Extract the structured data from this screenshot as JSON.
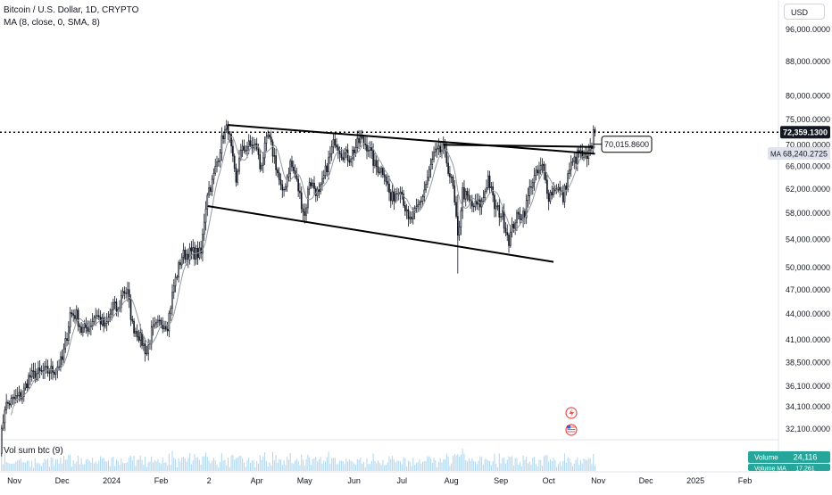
{
  "header": {
    "title": "Bitcoin / U.S. Dollar, 1D, CRYPTO",
    "ma_indicator": "MA (8, close, 0, SMA, 8)",
    "volume_indicator": "Vol sum btc (9)",
    "currency": "USD"
  },
  "price_panel": {
    "last_price_label": "72,359.1300",
    "ma_badge_text": "MA",
    "ma_value_label": "68,240.2725",
    "annotation_label": "70,015.8600",
    "volume_badge_text": "Volume",
    "volume_value_label": "24,116",
    "volume_ma_badge_text": "Volume MA",
    "volume_ma_value_label": "17,261"
  },
  "colors": {
    "up": "#26a69a",
    "down": "#ef5350",
    "candle": "#131722",
    "ma_line": "#9598a1",
    "grid": "#f0f3fa",
    "volume": "#b2d8f0",
    "volume_badge": "#26a69a",
    "icon_red": "#ef5350"
  },
  "icons": [
    "flash-icon",
    "us-flag-icon"
  ],
  "chart_data": {
    "type": "candlestick",
    "y_axis_ticks": [
      {
        "label": "96,000.0000",
        "value": 96000
      },
      {
        "label": "88,000.0000",
        "value": 88000
      },
      {
        "label": "80,000.0000",
        "value": 80000
      },
      {
        "label": "75,000.0000",
        "value": 75000
      },
      {
        "label": "70,000.0000",
        "value": 70000
      },
      {
        "label": "66,000.0000",
        "value": 66000
      },
      {
        "label": "62,000.0000",
        "value": 62000
      },
      {
        "label": "58,000.0000",
        "value": 58000
      },
      {
        "label": "54,000.0000",
        "value": 54000
      },
      {
        "label": "50,000.0000",
        "value": 50000
      },
      {
        "label": "47,000.0000",
        "value": 47000
      },
      {
        "label": "44,000.0000",
        "value": 44000
      },
      {
        "label": "41,000.0000",
        "value": 41000
      },
      {
        "label": "38,500.0000",
        "value": 38500
      },
      {
        "label": "36,100.0000",
        "value": 36100
      },
      {
        "label": "34,100.0000",
        "value": 34100
      },
      {
        "label": "32,100.0000",
        "value": 32100
      }
    ],
    "y_scale": "log",
    "ylim": [
      31200,
      104000
    ],
    "x_axis_ticks": [
      {
        "label": "Nov",
        "date": "2023-11-01"
      },
      {
        "label": "Dec",
        "date": "2023-12-01"
      },
      {
        "label": "2024",
        "date": "2024-01-01"
      },
      {
        "label": "Feb",
        "date": "2024-02-01"
      },
      {
        "label": "2",
        "date": "2024-03-02"
      },
      {
        "label": "Apr",
        "date": "2024-04-01"
      },
      {
        "label": "May",
        "date": "2024-05-01"
      },
      {
        "label": "Jun",
        "date": "2024-06-01"
      },
      {
        "label": "Jul",
        "date": "2024-07-01"
      },
      {
        "label": "Aug",
        "date": "2024-08-01"
      },
      {
        "label": "Sep",
        "date": "2024-09-01"
      },
      {
        "label": "Oct",
        "date": "2024-10-01"
      },
      {
        "label": "Nov",
        "date": "2024-11-01"
      },
      {
        "label": "Dec",
        "date": "2024-12-01"
      },
      {
        "label": "2025",
        "date": "2025-01-01"
      },
      {
        "label": "Feb",
        "date": "2025-02-01"
      }
    ],
    "xlim": [
      "2023-10-23",
      "2025-02-22"
    ],
    "series_anchors": [
      [
        "2023-10-23",
        30500
      ],
      [
        "2023-10-26",
        34100
      ],
      [
        "2023-11-02",
        34900
      ],
      [
        "2023-11-06",
        35200
      ],
      [
        "2023-11-10",
        36900
      ],
      [
        "2023-11-15",
        37300
      ],
      [
        "2023-11-20",
        37500
      ],
      [
        "2023-11-26",
        37700
      ],
      [
        "2023-12-01",
        38700
      ],
      [
        "2023-12-04",
        41500
      ],
      [
        "2023-12-06",
        44000
      ],
      [
        "2023-12-10",
        43800
      ],
      [
        "2023-12-13",
        42000
      ],
      [
        "2023-12-18",
        42500
      ],
      [
        "2023-12-22",
        44000
      ],
      [
        "2023-12-28",
        42300
      ],
      [
        "2024-01-02",
        45000
      ],
      [
        "2024-01-05",
        44200
      ],
      [
        "2024-01-08",
        47000
      ],
      [
        "2024-01-11",
        46500
      ],
      [
        "2024-01-14",
        42600
      ],
      [
        "2024-01-18",
        41500
      ],
      [
        "2024-01-23",
        39500
      ],
      [
        "2024-01-26",
        41800
      ],
      [
        "2024-02-01",
        43000
      ],
      [
        "2024-02-05",
        42700
      ],
      [
        "2024-02-09",
        47500
      ],
      [
        "2024-02-14",
        51600
      ],
      [
        "2024-02-20",
        52000
      ],
      [
        "2024-02-26",
        51800
      ],
      [
        "2024-02-28",
        57000
      ],
      [
        "2024-03-01",
        61500
      ],
      [
        "2024-03-04",
        63000
      ],
      [
        "2024-03-08",
        68000
      ],
      [
        "2024-03-11",
        72000
      ],
      [
        "2024-03-14",
        73300
      ],
      [
        "2024-03-19",
        62500
      ],
      [
        "2024-03-21",
        68000
      ],
      [
        "2024-03-26",
        69800
      ],
      [
        "2024-04-01",
        69500
      ],
      [
        "2024-04-03",
        65600
      ],
      [
        "2024-04-08",
        71500
      ],
      [
        "2024-04-12",
        67500
      ],
      [
        "2024-04-17",
        60800
      ],
      [
        "2024-04-22",
        66500
      ],
      [
        "2024-04-25",
        64200
      ],
      [
        "2024-05-01",
        57500
      ],
      [
        "2024-05-04",
        63500
      ],
      [
        "2024-05-10",
        60800
      ],
      [
        "2024-05-15",
        66000
      ],
      [
        "2024-05-20",
        71000
      ],
      [
        "2024-05-24",
        68500
      ],
      [
        "2024-05-29",
        67500
      ],
      [
        "2024-06-05",
        71000
      ],
      [
        "2024-06-10",
        69500
      ],
      [
        "2024-06-14",
        66000
      ],
      [
        "2024-06-20",
        65000
      ],
      [
        "2024-06-24",
        60000
      ],
      [
        "2024-06-30",
        62500
      ],
      [
        "2024-07-05",
        56500
      ],
      [
        "2024-07-09",
        57800
      ],
      [
        "2024-07-14",
        60800
      ],
      [
        "2024-07-21",
        68000
      ],
      [
        "2024-07-27",
        69000
      ],
      [
        "2024-07-29",
        66800
      ],
      [
        "2024-08-02",
        62000
      ],
      [
        "2024-08-05",
        54000
      ],
      [
        "2024-08-08",
        61500
      ],
      [
        "2024-08-14",
        59000
      ],
      [
        "2024-08-20",
        59500
      ],
      [
        "2024-08-24",
        64000
      ],
      [
        "2024-08-28",
        59000
      ],
      [
        "2024-09-02",
        57500
      ],
      [
        "2024-09-06",
        53900
      ],
      [
        "2024-09-10",
        57000
      ],
      [
        "2024-09-16",
        58200
      ],
      [
        "2024-09-20",
        63000
      ],
      [
        "2024-09-27",
        65800
      ],
      [
        "2024-10-01",
        60800
      ],
      [
        "2024-10-06",
        62500
      ],
      [
        "2024-10-10",
        60300
      ],
      [
        "2024-10-14",
        65500
      ],
      [
        "2024-10-20",
        68300
      ],
      [
        "2024-10-25",
        66800
      ],
      [
        "2024-10-28",
        69900
      ],
      [
        "2024-10-29",
        72300
      ],
      [
        "2024-10-30",
        72359
      ]
    ],
    "ma_period": 8,
    "last_price": 72359.13,
    "ma_last_value": 68240.2725,
    "annotation": {
      "date": "2024-10-29",
      "value": 70015.86
    },
    "trendlines": [
      {
        "name": "upper",
        "from": {
          "date": "2024-03-14",
          "value": 73800
        },
        "to": {
          "date": "2024-10-30",
          "value": 68200
        }
      },
      {
        "name": "upper-short",
        "from": {
          "date": "2024-07-27",
          "value": 69900
        },
        "to": {
          "date": "2024-10-29",
          "value": 69500
        }
      },
      {
        "name": "lower",
        "from": {
          "date": "2024-03-01",
          "value": 59100
        },
        "to": {
          "date": "2024-10-04",
          "value": 50700
        }
      }
    ],
    "volume_last": 24116,
    "volume_ma_last": 17261
  }
}
